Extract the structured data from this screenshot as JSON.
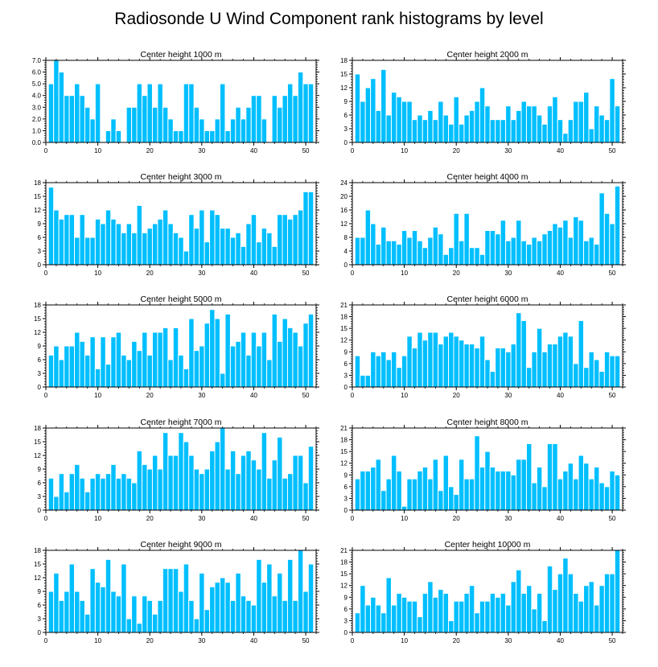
{
  "title": "Radiosonde U Wind Component rank histograms by level",
  "colors": {
    "bar": "#00BFFF",
    "bar_edge": "#ffffff",
    "axis": "#000000",
    "background": "#ffffff"
  },
  "chart_data": [
    {
      "type": "bar",
      "title": "Center height 1000 m",
      "ylim": [
        0,
        7.0
      ],
      "yticks": [
        "0.0",
        "1.0",
        "2.0",
        "3.0",
        "4.0",
        "5.0",
        "6.0",
        "7.0"
      ],
      "xlim": [
        0,
        52
      ],
      "xticks": [
        "0",
        "10",
        "20",
        "30",
        "40",
        "50"
      ],
      "x": [
        1,
        2,
        3,
        4,
        5,
        6,
        7,
        8,
        9,
        10,
        11,
        12,
        13,
        14,
        15,
        16,
        17,
        18,
        19,
        20,
        21,
        22,
        23,
        24,
        25,
        26,
        27,
        28,
        29,
        30,
        31,
        32,
        33,
        34,
        35,
        36,
        37,
        38,
        39,
        40,
        41,
        42,
        43,
        44,
        45,
        46,
        47,
        48,
        49,
        50,
        51
      ],
      "values": [
        5,
        7,
        6,
        4,
        4,
        5,
        4,
        3,
        2,
        5,
        0,
        1,
        2,
        1,
        0,
        3,
        3,
        5,
        4,
        5,
        3,
        5,
        3,
        2,
        1,
        1,
        5,
        5,
        3,
        2,
        1,
        1,
        2,
        5,
        1,
        2,
        3,
        2,
        3,
        4,
        4,
        2,
        0,
        4,
        3,
        4,
        5,
        4,
        6,
        5,
        5
      ]
    },
    {
      "type": "bar",
      "title": "Center height 2000 m",
      "ylim": [
        0,
        18
      ],
      "yticks": [
        "0",
        "3",
        "6",
        "9",
        "12",
        "15",
        "18"
      ],
      "xlim": [
        0,
        52
      ],
      "xticks": [
        "0",
        "10",
        "20",
        "30",
        "40",
        "50"
      ],
      "x": [
        1,
        2,
        3,
        4,
        5,
        6,
        7,
        8,
        9,
        10,
        11,
        12,
        13,
        14,
        15,
        16,
        17,
        18,
        19,
        20,
        21,
        22,
        23,
        24,
        25,
        26,
        27,
        28,
        29,
        30,
        31,
        32,
        33,
        34,
        35,
        36,
        37,
        38,
        39,
        40,
        41,
        42,
        43,
        44,
        45,
        46,
        47,
        48,
        49,
        50,
        51
      ],
      "values": [
        15,
        9,
        12,
        14,
        7,
        16,
        6,
        11,
        10,
        9,
        9,
        5,
        6,
        5,
        7,
        5,
        9,
        6,
        4,
        10,
        4,
        6,
        7,
        9,
        12,
        8,
        5,
        5,
        5,
        8,
        5,
        7,
        9,
        8,
        8,
        6,
        4,
        8,
        10,
        5,
        2,
        5,
        9,
        9,
        11,
        3,
        8,
        6,
        5,
        14,
        8
      ]
    },
    {
      "type": "bar",
      "title": "Center height 3000 m",
      "ylim": [
        0,
        18
      ],
      "yticks": [
        "0",
        "3",
        "6",
        "9",
        "12",
        "15",
        "18"
      ],
      "xlim": [
        0,
        52
      ],
      "xticks": [
        "0",
        "10",
        "20",
        "30",
        "40",
        "50"
      ],
      "x": [
        1,
        2,
        3,
        4,
        5,
        6,
        7,
        8,
        9,
        10,
        11,
        12,
        13,
        14,
        15,
        16,
        17,
        18,
        19,
        20,
        21,
        22,
        23,
        24,
        25,
        26,
        27,
        28,
        29,
        30,
        31,
        32,
        33,
        34,
        35,
        36,
        37,
        38,
        39,
        40,
        41,
        42,
        43,
        44,
        45,
        46,
        47,
        48,
        49,
        50,
        51
      ],
      "values": [
        17,
        12,
        10,
        11,
        11,
        6,
        11,
        6,
        6,
        10,
        9,
        12,
        10,
        9,
        7,
        9,
        7,
        13,
        7,
        8,
        9,
        10,
        12,
        9,
        7,
        6,
        3,
        11,
        8,
        12,
        5,
        12,
        11,
        8,
        8,
        6,
        7,
        4,
        9,
        11,
        5,
        8,
        7,
        4,
        11,
        11,
        10,
        11,
        12,
        16,
        16
      ]
    },
    {
      "type": "bar",
      "title": "Center height 4000 m",
      "ylim": [
        0,
        24
      ],
      "yticks": [
        "0",
        "4",
        "8",
        "12",
        "16",
        "20",
        "24"
      ],
      "xlim": [
        0,
        52
      ],
      "xticks": [
        "0",
        "10",
        "20",
        "30",
        "40",
        "50"
      ],
      "x": [
        1,
        2,
        3,
        4,
        5,
        6,
        7,
        8,
        9,
        10,
        11,
        12,
        13,
        14,
        15,
        16,
        17,
        18,
        19,
        20,
        21,
        22,
        23,
        24,
        25,
        26,
        27,
        28,
        29,
        30,
        31,
        32,
        33,
        34,
        35,
        36,
        37,
        38,
        39,
        40,
        41,
        42,
        43,
        44,
        45,
        46,
        47,
        48,
        49,
        50,
        51
      ],
      "values": [
        8,
        8,
        16,
        12,
        6,
        11,
        7,
        7,
        6,
        10,
        8,
        10,
        7,
        5,
        8,
        11,
        9,
        3,
        5,
        15,
        7,
        15,
        5,
        5,
        3,
        10,
        10,
        9,
        13,
        7,
        8,
        13,
        7,
        6,
        8,
        7,
        9,
        10,
        12,
        11,
        13,
        8,
        14,
        13,
        7,
        8,
        6,
        21,
        15,
        12,
        23
      ]
    },
    {
      "type": "bar",
      "title": "Center height 5000 m",
      "ylim": [
        0,
        18
      ],
      "yticks": [
        "0",
        "3",
        "6",
        "9",
        "12",
        "15",
        "18"
      ],
      "xlim": [
        0,
        52
      ],
      "xticks": [
        "0",
        "10",
        "20",
        "30",
        "40",
        "50"
      ],
      "x": [
        1,
        2,
        3,
        4,
        5,
        6,
        7,
        8,
        9,
        10,
        11,
        12,
        13,
        14,
        15,
        16,
        17,
        18,
        19,
        20,
        21,
        22,
        23,
        24,
        25,
        26,
        27,
        28,
        29,
        30,
        31,
        32,
        33,
        34,
        35,
        36,
        37,
        38,
        39,
        40,
        41,
        42,
        43,
        44,
        45,
        46,
        47,
        48,
        49,
        50,
        51
      ],
      "values": [
        7,
        9,
        6,
        9,
        9,
        12,
        10,
        7,
        11,
        4,
        11,
        5,
        11,
        12,
        7,
        6,
        10,
        8,
        12,
        7,
        12,
        12,
        13,
        6,
        13,
        7,
        4,
        15,
        8,
        9,
        14,
        17,
        15,
        3,
        16,
        9,
        10,
        12,
        7,
        12,
        9,
        12,
        6,
        16,
        10,
        15,
        13,
        12,
        9,
        14,
        16
      ]
    },
    {
      "type": "bar",
      "title": "Center height 6000 m",
      "ylim": [
        0,
        21
      ],
      "yticks": [
        "0",
        "3",
        "6",
        "9",
        "12",
        "15",
        "18",
        "21"
      ],
      "xlim": [
        0,
        52
      ],
      "xticks": [
        "0",
        "10",
        "20",
        "30",
        "40",
        "50"
      ],
      "x": [
        1,
        2,
        3,
        4,
        5,
        6,
        7,
        8,
        9,
        10,
        11,
        12,
        13,
        14,
        15,
        16,
        17,
        18,
        19,
        20,
        21,
        22,
        23,
        24,
        25,
        26,
        27,
        28,
        29,
        30,
        31,
        32,
        33,
        34,
        35,
        36,
        37,
        38,
        39,
        40,
        41,
        42,
        43,
        44,
        45,
        46,
        47,
        48,
        49,
        50,
        51
      ],
      "values": [
        8,
        3,
        3,
        9,
        8,
        9,
        7,
        9,
        5,
        8,
        13,
        10,
        14,
        12,
        14,
        14,
        11,
        13,
        14,
        13,
        12,
        11,
        11,
        10,
        13,
        7,
        4,
        10,
        10,
        9,
        11,
        19,
        17,
        5,
        9,
        15,
        9,
        11,
        11,
        13,
        14,
        13,
        6,
        17,
        5,
        9,
        7,
        4,
        9,
        8,
        8
      ]
    },
    {
      "type": "bar",
      "title": "Center height 7000 m",
      "ylim": [
        0,
        18
      ],
      "yticks": [
        "0",
        "3",
        "6",
        "9",
        "12",
        "15",
        "18"
      ],
      "xlim": [
        0,
        52
      ],
      "xticks": [
        "0",
        "10",
        "20",
        "30",
        "40",
        "50"
      ],
      "x": [
        1,
        2,
        3,
        4,
        5,
        6,
        7,
        8,
        9,
        10,
        11,
        12,
        13,
        14,
        15,
        16,
        17,
        18,
        19,
        20,
        21,
        22,
        23,
        24,
        25,
        26,
        27,
        28,
        29,
        30,
        31,
        32,
        33,
        34,
        35,
        36,
        37,
        38,
        39,
        40,
        41,
        42,
        43,
        44,
        45,
        46,
        47,
        48,
        49,
        50,
        51
      ],
      "values": [
        7,
        3,
        8,
        4,
        8,
        10,
        7,
        4,
        7,
        8,
        7,
        8,
        10,
        7,
        8,
        7,
        6,
        13,
        10,
        9,
        12,
        9,
        17,
        12,
        12,
        17,
        15,
        12,
        9,
        8,
        9,
        13,
        15,
        18,
        9,
        13,
        8,
        12,
        13,
        11,
        9,
        17,
        7,
        11,
        16,
        7,
        8,
        12,
        12,
        6,
        14
      ]
    },
    {
      "type": "bar",
      "title": "Center height 8000 m",
      "ylim": [
        0,
        21
      ],
      "yticks": [
        "0",
        "3",
        "6",
        "9",
        "12",
        "15",
        "18",
        "21"
      ],
      "xlim": [
        0,
        52
      ],
      "xticks": [
        "0",
        "10",
        "20",
        "30",
        "40",
        "50"
      ],
      "x": [
        1,
        2,
        3,
        4,
        5,
        6,
        7,
        8,
        9,
        10,
        11,
        12,
        13,
        14,
        15,
        16,
        17,
        18,
        19,
        20,
        21,
        22,
        23,
        24,
        25,
        26,
        27,
        28,
        29,
        30,
        31,
        32,
        33,
        34,
        35,
        36,
        37,
        38,
        39,
        40,
        41,
        42,
        43,
        44,
        45,
        46,
        47,
        48,
        49,
        50,
        51
      ],
      "values": [
        8,
        10,
        10,
        11,
        13,
        5,
        8,
        14,
        10,
        1,
        8,
        8,
        10,
        11,
        8,
        13,
        5,
        14,
        6,
        4,
        13,
        8,
        8,
        19,
        11,
        15,
        11,
        10,
        10,
        10,
        9,
        13,
        13,
        17,
        7,
        11,
        6,
        17,
        17,
        8,
        10,
        12,
        8,
        14,
        12,
        8,
        11,
        7,
        6,
        10,
        9
      ]
    },
    {
      "type": "bar",
      "title": "Center height 9000 m",
      "ylim": [
        0,
        18
      ],
      "yticks": [
        "0",
        "3",
        "6",
        "9",
        "12",
        "15",
        "18"
      ],
      "xlim": [
        0,
        52
      ],
      "xticks": [
        "0",
        "10",
        "20",
        "30",
        "40",
        "50"
      ],
      "x": [
        1,
        2,
        3,
        4,
        5,
        6,
        7,
        8,
        9,
        10,
        11,
        12,
        13,
        14,
        15,
        16,
        17,
        18,
        19,
        20,
        21,
        22,
        23,
        24,
        25,
        26,
        27,
        28,
        29,
        30,
        31,
        32,
        33,
        34,
        35,
        36,
        37,
        38,
        39,
        40,
        41,
        42,
        43,
        44,
        45,
        46,
        47,
        48,
        49,
        50,
        51
      ],
      "values": [
        9,
        13,
        7,
        9,
        15,
        9,
        7,
        4,
        14,
        11,
        10,
        16,
        9,
        8,
        15,
        3,
        8,
        2,
        8,
        7,
        4,
        7,
        14,
        14,
        14,
        9,
        15,
        7,
        3,
        13,
        5,
        10,
        11,
        12,
        11,
        7,
        13,
        8,
        7,
        6,
        16,
        11,
        15,
        8,
        13,
        7,
        16,
        7,
        18,
        9,
        15
      ]
    },
    {
      "type": "bar",
      "title": "Center height 10000 m",
      "ylim": [
        0,
        21
      ],
      "yticks": [
        "0",
        "3",
        "6",
        "9",
        "12",
        "15",
        "18",
        "21"
      ],
      "xlim": [
        0,
        52
      ],
      "xticks": [
        "0",
        "10",
        "20",
        "30",
        "40",
        "50"
      ],
      "x": [
        1,
        2,
        3,
        4,
        5,
        6,
        7,
        8,
        9,
        10,
        11,
        12,
        13,
        14,
        15,
        16,
        17,
        18,
        19,
        20,
        21,
        22,
        23,
        24,
        25,
        26,
        27,
        28,
        29,
        30,
        31,
        32,
        33,
        34,
        35,
        36,
        37,
        38,
        39,
        40,
        41,
        42,
        43,
        44,
        45,
        46,
        47,
        48,
        49,
        50,
        51
      ],
      "values": [
        5,
        12,
        7,
        9,
        7,
        5,
        14,
        7,
        10,
        9,
        8,
        8,
        4,
        10,
        13,
        9,
        11,
        10,
        3,
        8,
        8,
        10,
        12,
        5,
        8,
        8,
        10,
        9,
        10,
        7,
        13,
        16,
        10,
        12,
        6,
        10,
        3,
        17,
        11,
        15,
        19,
        15,
        10,
        8,
        12,
        13,
        7,
        12,
        15,
        15,
        21
      ]
    }
  ]
}
